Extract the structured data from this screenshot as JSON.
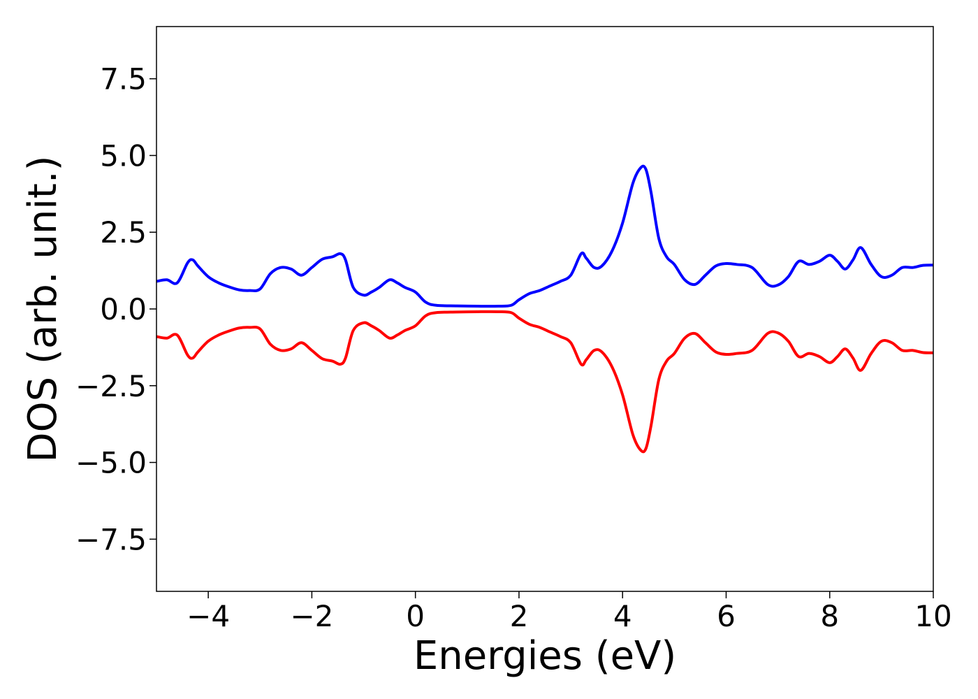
{
  "chart_data": {
    "type": "line",
    "title": "",
    "xlabel": "Energies (eV)",
    "ylabel": "DOS (arb. unit.)",
    "xlim": [
      -5,
      10
    ],
    "ylim": [
      -9.2,
      9.2
    ],
    "xticks": [
      {
        "value": -4,
        "label": "−4"
      },
      {
        "value": -2,
        "label": "−2"
      },
      {
        "value": 0,
        "label": "0"
      },
      {
        "value": 2,
        "label": "2"
      },
      {
        "value": 4,
        "label": "4"
      },
      {
        "value": 6,
        "label": "6"
      },
      {
        "value": 8,
        "label": "8"
      },
      {
        "value": 10,
        "label": "10"
      }
    ],
    "yticks": [
      {
        "value": -7.5,
        "label": "−7.5"
      },
      {
        "value": -5,
        "label": "−5.0"
      },
      {
        "value": -2.5,
        "label": "−2.5"
      },
      {
        "value": 0,
        "label": "0.0"
      },
      {
        "value": 2.5,
        "label": "2.5"
      },
      {
        "value": 5,
        "label": "5.0"
      },
      {
        "value": 7.5,
        "label": "7.5"
      }
    ],
    "grid": false,
    "legend": "none",
    "series": [
      {
        "color": "#0000ff",
        "x": [
          -5.0,
          -4.8,
          -4.6,
          -4.4,
          -4.3,
          -4.2,
          -4.0,
          -3.8,
          -3.6,
          -3.4,
          -3.2,
          -3.0,
          -2.8,
          -2.6,
          -2.4,
          -2.2,
          -2.0,
          -1.8,
          -1.6,
          -1.45,
          -1.35,
          -1.2,
          -1.0,
          -0.85,
          -0.7,
          -0.5,
          -0.35,
          -0.2,
          0.0,
          0.2,
          0.4,
          0.8,
          1.2,
          1.6,
          1.85,
          2.0,
          2.2,
          2.4,
          2.6,
          2.8,
          3.0,
          3.2,
          3.3,
          3.45,
          3.6,
          3.8,
          4.0,
          4.2,
          4.35,
          4.45,
          4.55,
          4.7,
          4.85,
          5.0,
          5.2,
          5.4,
          5.6,
          5.8,
          6.0,
          6.2,
          6.5,
          6.8,
          7.0,
          7.2,
          7.4,
          7.6,
          7.8,
          8.0,
          8.15,
          8.3,
          8.45,
          8.6,
          8.8,
          9.0,
          9.2,
          9.4,
          9.6,
          9.8,
          10.0
        ],
        "y": [
          0.9,
          0.95,
          0.85,
          1.5,
          1.6,
          1.4,
          1.05,
          0.85,
          0.72,
          0.62,
          0.6,
          0.65,
          1.15,
          1.35,
          1.3,
          1.1,
          1.35,
          1.62,
          1.7,
          1.8,
          1.6,
          0.7,
          0.45,
          0.55,
          0.7,
          0.95,
          0.85,
          0.7,
          0.55,
          0.22,
          0.12,
          0.1,
          0.09,
          0.09,
          0.12,
          0.3,
          0.5,
          0.6,
          0.75,
          0.9,
          1.1,
          1.8,
          1.65,
          1.35,
          1.4,
          1.9,
          2.8,
          4.1,
          4.6,
          4.55,
          3.8,
          2.3,
          1.7,
          1.45,
          0.95,
          0.8,
          1.1,
          1.4,
          1.48,
          1.45,
          1.35,
          0.8,
          0.78,
          1.05,
          1.55,
          1.45,
          1.55,
          1.75,
          1.55,
          1.3,
          1.6,
          2.0,
          1.45,
          1.05,
          1.1,
          1.35,
          1.35,
          1.42,
          1.43
        ]
      },
      {
        "color": "#ff0000",
        "x": [
          -5.0,
          -4.8,
          -4.6,
          -4.4,
          -4.3,
          -4.2,
          -4.0,
          -3.8,
          -3.6,
          -3.4,
          -3.2,
          -3.0,
          -2.8,
          -2.6,
          -2.4,
          -2.2,
          -2.0,
          -1.8,
          -1.6,
          -1.45,
          -1.35,
          -1.2,
          -1.0,
          -0.85,
          -0.7,
          -0.5,
          -0.35,
          -0.2,
          0.0,
          0.2,
          0.4,
          0.8,
          1.2,
          1.6,
          1.85,
          2.0,
          2.2,
          2.4,
          2.6,
          2.8,
          3.0,
          3.2,
          3.3,
          3.45,
          3.6,
          3.8,
          4.0,
          4.2,
          4.35,
          4.45,
          4.55,
          4.7,
          4.85,
          5.0,
          5.2,
          5.4,
          5.6,
          5.8,
          6.0,
          6.2,
          6.5,
          6.8,
          7.0,
          7.2,
          7.4,
          7.6,
          7.8,
          8.0,
          8.15,
          8.3,
          8.45,
          8.6,
          8.8,
          9.0,
          9.2,
          9.4,
          9.6,
          9.8,
          10.0
        ],
        "y": [
          -0.9,
          -0.95,
          -0.85,
          -1.5,
          -1.6,
          -1.4,
          -1.05,
          -0.85,
          -0.72,
          -0.62,
          -0.6,
          -0.65,
          -1.15,
          -1.35,
          -1.3,
          -1.1,
          -1.35,
          -1.62,
          -1.7,
          -1.8,
          -1.6,
          -0.7,
          -0.45,
          -0.55,
          -0.7,
          -0.95,
          -0.85,
          -0.7,
          -0.55,
          -0.22,
          -0.12,
          -0.1,
          -0.09,
          -0.09,
          -0.12,
          -0.3,
          -0.5,
          -0.6,
          -0.75,
          -0.9,
          -1.1,
          -1.8,
          -1.65,
          -1.35,
          -1.4,
          -1.9,
          -2.8,
          -4.1,
          -4.6,
          -4.55,
          -3.8,
          -2.3,
          -1.7,
          -1.45,
          -0.95,
          -0.8,
          -1.1,
          -1.4,
          -1.48,
          -1.45,
          -1.35,
          -0.8,
          -0.78,
          -1.05,
          -1.55,
          -1.45,
          -1.55,
          -1.75,
          -1.55,
          -1.3,
          -1.6,
          -2.0,
          -1.45,
          -1.05,
          -1.1,
          -1.35,
          -1.35,
          -1.42,
          -1.43
        ]
      }
    ]
  }
}
